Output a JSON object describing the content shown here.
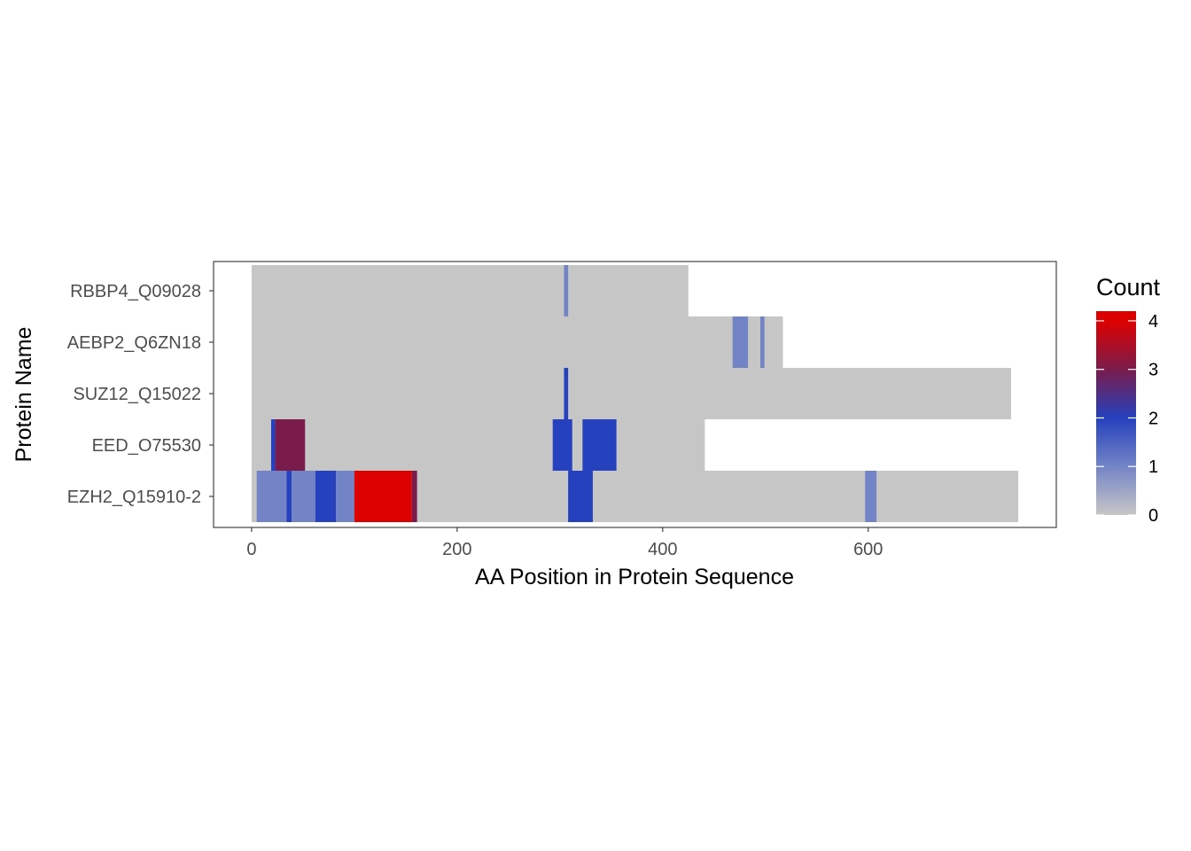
{
  "chart_data": {
    "type": "heatmap",
    "xlabel": "AA Position in Protein Sequence",
    "ylabel": "Protein Name",
    "xlim": [
      -37,
      783
    ],
    "x_ticks": [
      0,
      200,
      400,
      600
    ],
    "x_tick_labels": [
      "0",
      "200",
      "400",
      "600"
    ],
    "grid": false,
    "legend": {
      "title": "Count",
      "position": "right",
      "range": [
        0,
        4.2
      ],
      "ticks": [
        0,
        1,
        2,
        3,
        4
      ],
      "tick_labels": [
        "0",
        "1",
        "2",
        "3",
        "4"
      ],
      "gradient": [
        {
          "value": 0,
          "color": "#c6c6c6"
        },
        {
          "value": 1,
          "color": "#7384c6"
        },
        {
          "value": 2,
          "color": "#2541bd"
        },
        {
          "value": 3,
          "color": "#7a1c4b"
        },
        {
          "value": 4,
          "color": "#dd0000"
        }
      ]
    },
    "proteins": [
      {
        "name": "RBBP4_Q09028",
        "length": 425,
        "segments": [
          {
            "start": 304,
            "end": 308,
            "count": 1
          }
        ]
      },
      {
        "name": "AEBP2_Q6ZN18",
        "length": 517,
        "segments": [
          {
            "start": 468,
            "end": 483,
            "count": 1
          },
          {
            "start": 495,
            "end": 499,
            "count": 1
          }
        ]
      },
      {
        "name": "SUZ12_Q15022",
        "length": 739,
        "segments": [
          {
            "start": 304,
            "end": 308,
            "count": 2
          }
        ]
      },
      {
        "name": "EED_O75530",
        "length": 441,
        "segments": [
          {
            "start": 19,
            "end": 23,
            "count": 2
          },
          {
            "start": 23,
            "end": 52,
            "count": 3
          },
          {
            "start": 293,
            "end": 312,
            "count": 2
          },
          {
            "start": 322,
            "end": 355,
            "count": 2
          }
        ]
      },
      {
        "name": "EZH2_Q15910-2",
        "length": 746,
        "segments": [
          {
            "start": 5,
            "end": 34,
            "count": 1
          },
          {
            "start": 34,
            "end": 39,
            "count": 2
          },
          {
            "start": 39,
            "end": 62,
            "count": 1
          },
          {
            "start": 62,
            "end": 82,
            "count": 2
          },
          {
            "start": 82,
            "end": 100,
            "count": 1
          },
          {
            "start": 100,
            "end": 156,
            "count": 4
          },
          {
            "start": 156,
            "end": 161,
            "count": 3
          },
          {
            "start": 308,
            "end": 332,
            "count": 2
          },
          {
            "start": 597,
            "end": 608,
            "count": 1
          }
        ]
      }
    ]
  }
}
